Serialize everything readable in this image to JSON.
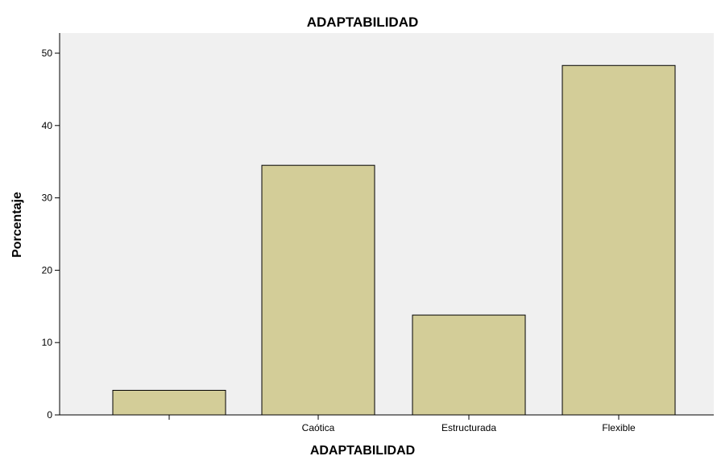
{
  "chart_data": {
    "type": "bar",
    "title": "ADAPTABILIDAD",
    "xlabel": "ADAPTABILIDAD",
    "ylabel": "Porcentaje",
    "categories": [
      "",
      "Caótica",
      "Estructurada",
      "Flexible"
    ],
    "values": [
      3.4,
      34.5,
      13.8,
      48.3
    ],
    "ylim": [
      0,
      50
    ],
    "yticks": [
      0,
      10,
      20,
      30,
      40,
      50
    ],
    "grid": false,
    "legend": "none",
    "colors": {
      "bar_fill": "#d3cd98",
      "plot_background": "#f0f0f0",
      "bar_stroke": "#000000"
    }
  }
}
